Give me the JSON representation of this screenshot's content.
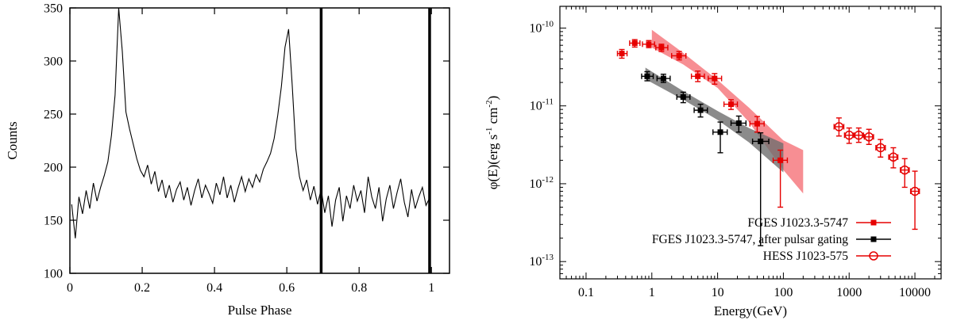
{
  "figure": {
    "background": "#ffffff",
    "accent_red": "#e60000",
    "accent_black": "#000000"
  },
  "chart_data": [
    {
      "type": "line",
      "title": "pulsar pulse profile",
      "xlabel": "Pulse Phase",
      "ylabel": "Counts",
      "xlim": [
        0,
        1.05
      ],
      "ylim": [
        100,
        350
      ],
      "xticks": [
        0,
        0.2,
        0.4,
        0.6,
        0.8,
        1
      ],
      "yticks": [
        100,
        150,
        200,
        250,
        300,
        350
      ],
      "line_color": "#000000",
      "vlines": {
        "positions": [
          0.695,
          0.995
        ],
        "width": 3.5,
        "color": "#000000"
      },
      "bin_width": 0.01,
      "counts": [
        165,
        133,
        172,
        156,
        178,
        161,
        185,
        168,
        181,
        192,
        205,
        230,
        268,
        350,
        309,
        252,
        236,
        222,
        208,
        197,
        191,
        202,
        184,
        196,
        177,
        188,
        171,
        183,
        167,
        179,
        186,
        169,
        181,
        164,
        178,
        189,
        171,
        183,
        175,
        166,
        185,
        174,
        191,
        171,
        183,
        167,
        180,
        191,
        177,
        189,
        181,
        193,
        186,
        198,
        205,
        213,
        227,
        249,
        276,
        313,
        330,
        277,
        217,
        191,
        178,
        188,
        169,
        182,
        165,
        179,
        157,
        173,
        144,
        169,
        181,
        149,
        173,
        161,
        183,
        168,
        178,
        157,
        191,
        172,
        161,
        181,
        149,
        170,
        183,
        161,
        176,
        189,
        167,
        153,
        179,
        161,
        172,
        181,
        164,
        171
      ]
    },
    {
      "type": "scatter",
      "title": "spectral energy distribution",
      "xlabel": "Energy(GeV)",
      "ylabel_parts": [
        {
          "t": "φ(E)(erg s"
        },
        {
          "t": "-1",
          "sup": true
        },
        {
          "t": " cm"
        },
        {
          "t": "-2",
          "sup": true
        },
        {
          "t": ")"
        }
      ],
      "xscale": "log",
      "yscale": "log",
      "xlim": [
        0.04,
        25000
      ],
      "ylim": [
        6e-14,
        1.9e-10
      ],
      "xticks": [
        {
          "v": 0.1,
          "label": "0.1"
        },
        {
          "v": 1,
          "label": "1"
        },
        {
          "v": 10,
          "label": "10"
        },
        {
          "v": 100,
          "label": "100"
        },
        {
          "v": 1000,
          "label": "1000"
        },
        {
          "v": 10000,
          "label": "10000"
        }
      ],
      "yticks": [
        {
          "v": 1e-10,
          "base": "10",
          "exp": "-10"
        },
        {
          "v": 1e-11,
          "base": "10",
          "exp": "-11"
        },
        {
          "v": 1e-12,
          "base": "10",
          "exp": "-12"
        },
        {
          "v": 1e-13,
          "base": "10",
          "exp": "-13"
        }
      ],
      "bands": [
        {
          "name": "fges-butterfly",
          "color": "#f4626a",
          "opacity": 0.72,
          "e": [
            1,
            3,
            10,
            30,
            100,
            200
          ],
          "top": [
            9.5e-11,
            4.8e-11,
            2.15e-11,
            9.5e-12,
            3.6e-12,
            2.7e-12
          ],
          "bottom": [
            5.6e-11,
            3.4e-11,
            1.7e-11,
            6.2e-12,
            1.5e-12,
            7.5e-13
          ]
        },
        {
          "name": "gated-butterfly",
          "color": "#6e6e6e",
          "opacity": 0.8,
          "e": [
            0.8,
            3,
            10,
            30,
            100
          ],
          "top": [
            3.1e-11,
            1.55e-11,
            8.6e-12,
            5.2e-12,
            3.3e-12
          ],
          "bottom": [
            2.2e-11,
            1.2e-11,
            6.6e-12,
            3.4e-12,
            1.4e-12
          ]
        }
      ],
      "series": [
        {
          "name": "FGES J1023.3-5747",
          "marker": "filled-square",
          "color": "#e60000",
          "points": [
            [
              0.35,
              4.7e-11,
              0.3,
              0.42,
              4.1e-11,
              5.3e-11
            ],
            [
              0.55,
              6.4e-11,
              0.46,
              0.66,
              5.7e-11,
              7.1e-11
            ],
            [
              0.9,
              6.2e-11,
              0.72,
              1.1,
              5.6e-11,
              6.9e-11
            ],
            [
              1.4,
              5.6e-11,
              1.15,
              1.75,
              5e-11,
              6.2e-11
            ],
            [
              2.6,
              4.4e-11,
              2.0,
              3.3,
              3.9e-11,
              5e-11
            ],
            [
              5.0,
              2.4e-11,
              4.0,
              6.3,
              2.05e-11,
              2.8e-11
            ],
            [
              9.0,
              2.25e-11,
              7.2,
              11.5,
              1.9e-11,
              2.6e-11
            ],
            [
              16,
              1.05e-11,
              12.5,
              20,
              9e-12,
              1.2e-11
            ],
            [
              40,
              5.9e-12,
              31,
              51,
              4.6e-12,
              7.3e-12
            ],
            [
              90,
              2e-12,
              70,
              115,
              5e-13,
              2.7e-12
            ]
          ]
        },
        {
          "name": "FGES J1023.3-5747, after pulsar gating",
          "marker": "filled-square",
          "color": "#000000",
          "points": [
            [
              0.85,
              2.4e-11,
              0.7,
              1.05,
              2.1e-11,
              2.75e-11
            ],
            [
              1.5,
              2.25e-11,
              1.2,
              1.9,
              2e-11,
              2.55e-11
            ],
            [
              3.0,
              1.3e-11,
              2.4,
              3.8,
              1.1e-11,
              1.5e-11
            ],
            [
              5.5,
              8.8e-12,
              4.4,
              7.0,
              7.2e-12,
              1.05e-11
            ],
            [
              11,
              4.6e-12,
              8.5,
              14,
              2.5e-12,
              6.2e-12
            ],
            [
              21,
              6e-12,
              16,
              27,
              4.6e-12,
              7.4e-12
            ],
            [
              45,
              3.5e-12,
              34,
              60,
              1.6e-13,
              4.5e-12
            ]
          ]
        },
        {
          "name": "HESS J1023-575",
          "marker": "open-circle",
          "color": "#e60000",
          "points": [
            [
              700,
              5.4e-12,
              590,
              830,
              4.1e-12,
              7e-12
            ],
            [
              1000,
              4.2e-12,
              850,
              1180,
              3.3e-12,
              5.2e-12
            ],
            [
              1400,
              4.2e-12,
              1190,
              1650,
              3.4e-12,
              5.2e-12
            ],
            [
              2000,
              4e-12,
              1700,
              2350,
              3.2e-12,
              5e-12
            ],
            [
              3000,
              2.9e-12,
              2550,
              3550,
              2.2e-12,
              3.7e-12
            ],
            [
              4700,
              2.2e-12,
              4000,
              5500,
              1.6e-12,
              2.9e-12
            ],
            [
              7000,
              1.5e-12,
              6000,
              8200,
              9e-13,
              2.1e-12
            ],
            [
              10000,
              8e-13,
              8600,
              11700,
              2.6e-13,
              1.45e-12
            ]
          ]
        }
      ],
      "legend": {
        "position": "bottom-right-inside",
        "labels": [
          "FGES J1023.3-5747",
          "FGES J1023.3-5747, after pulsar gating",
          "HESS J1023-575"
        ]
      }
    }
  ]
}
